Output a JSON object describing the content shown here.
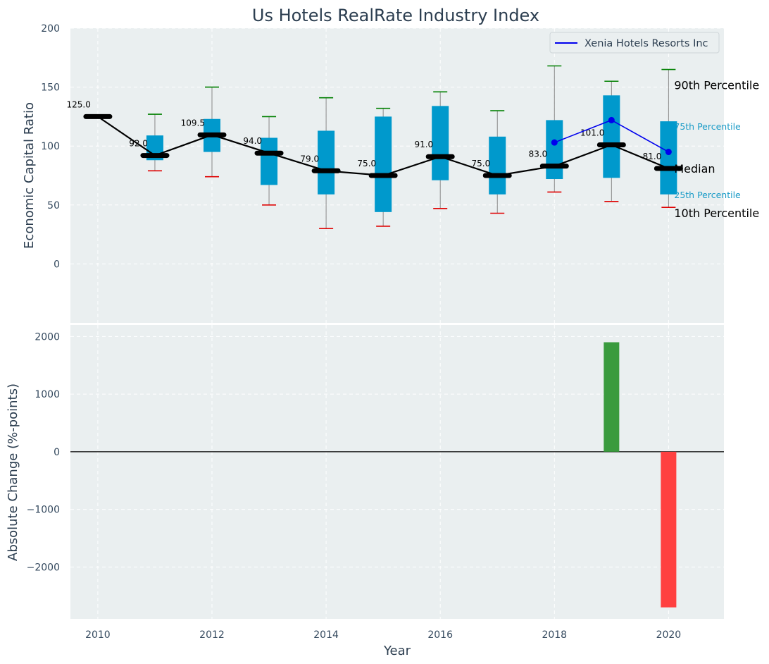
{
  "chart_data": {
    "title": "Us Hotels RealRate Industry Index",
    "xlabel": "Year",
    "x_ticks": [
      "2010",
      "2012",
      "2014",
      "2016",
      "2018",
      "2020"
    ],
    "top_panel": {
      "type": "box",
      "ylabel": "Economic Capital Ratio",
      "ylim": [
        -50,
        200
      ],
      "y_ticks": [
        "0",
        "50",
        "100",
        "150",
        "200"
      ],
      "years": [
        2010,
        2011,
        2012,
        2013,
        2014,
        2015,
        2016,
        2017,
        2018,
        2019,
        2020
      ],
      "p10": [
        125,
        79,
        74,
        50,
        30,
        32,
        47,
        43,
        61,
        53,
        48
      ],
      "p25": [
        125,
        88,
        95,
        67,
        59,
        44,
        71,
        59,
        72,
        73,
        59
      ],
      "median": [
        125,
        92,
        109.5,
        94,
        79,
        75,
        91,
        75,
        83,
        101,
        81
      ],
      "p75": [
        125,
        109,
        123,
        107,
        113,
        125,
        134,
        108,
        122,
        143,
        121
      ],
      "p90": [
        125,
        127,
        150,
        125,
        141,
        132,
        146,
        130,
        168,
        155,
        165
      ],
      "median_labels": [
        "125.0",
        "92.0",
        "109.5",
        "94.0",
        "79.0",
        "75.0",
        "91.0",
        "75.0",
        "83.0",
        "101.0",
        "81.0"
      ],
      "company": {
        "name": "Xenia Hotels Resorts Inc",
        "years": [
          2018,
          2019,
          2020
        ],
        "values": [
          103,
          122,
          95
        ]
      },
      "annotations": {
        "p90": "90th Percentile",
        "p75": "75th Percentile",
        "median": "Median",
        "p25": "25th Percentile",
        "p10": "10th Percentile"
      }
    },
    "bottom_panel": {
      "type": "bar",
      "ylabel": "Absolute Change (%-points)",
      "ylim": [
        -2900,
        2200
      ],
      "y_ticks": [
        "2000",
        "1000",
        "0",
        "−1000",
        "−2000"
      ],
      "y_tick_values": [
        2000,
        1000,
        0,
        -1000,
        -2000
      ],
      "years": [
        2019,
        2020
      ],
      "values": [
        1900,
        -2700
      ]
    },
    "legend": {
      "location": "top-right",
      "entries": [
        "Xenia Hotels Resorts Inc"
      ]
    },
    "grid": true
  },
  "colors": {
    "panel_bg": "#eaeff0",
    "grid": "#ffffff",
    "box": "#0099cc",
    "whisker": "#888888",
    "cap_high": "#008000",
    "cap_low": "#e00000",
    "median": "#000000",
    "company": "#0000ee",
    "bar_pos": "#3a9b3e",
    "bar_neg": "#ff4040",
    "pct_small": "#1a9bc7"
  }
}
